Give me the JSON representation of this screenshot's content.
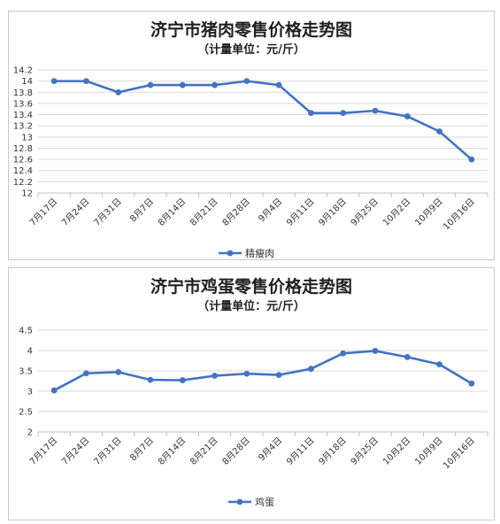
{
  "chart_data": [
    {
      "type": "line",
      "title": "济宁市猪肉零售价格走势图",
      "subtitle": "（计量单位：元/斤）",
      "categories": [
        "7月17日",
        "7月24日",
        "7月31日",
        "8月7日",
        "8月14日",
        "8月21日",
        "8月28日",
        "9月4日",
        "9月11日",
        "9月18日",
        "9月25日",
        "10月2日",
        "10月9日",
        "10月16日"
      ],
      "series": [
        {
          "name": "精瘦肉",
          "color": "#4472c4",
          "values": [
            14.0,
            14.0,
            13.8,
            13.93,
            13.93,
            13.93,
            14.0,
            13.93,
            13.43,
            13.43,
            13.47,
            13.37,
            13.1,
            12.6
          ]
        }
      ],
      "ylim": [
        12,
        14.2
      ],
      "yticks": [
        "12",
        "12.2",
        "12.4",
        "12.6",
        "12.8",
        "13",
        "13.2",
        "13.4",
        "13.6",
        "13.8",
        "14",
        "14.2"
      ],
      "ytick_values": [
        12,
        12.2,
        12.4,
        12.6,
        12.8,
        13,
        13.2,
        13.4,
        13.6,
        13.8,
        14,
        14.2
      ],
      "grid": true,
      "legend": "bottom"
    },
    {
      "type": "line",
      "title": "济宁市鸡蛋零售价格走势图",
      "subtitle": "（计量单位：元/斤）",
      "categories": [
        "7月17日",
        "7月24日",
        "7月31日",
        "8月7日",
        "8月14日",
        "8月21日",
        "8月28日",
        "9月4日",
        "9月11日",
        "9月18日",
        "9月25日",
        "10月2日",
        "10月9日",
        "10月16日"
      ],
      "series": [
        {
          "name": "鸡蛋",
          "color": "#4472c4",
          "values": [
            3.02,
            3.44,
            3.47,
            3.28,
            3.27,
            3.38,
            3.43,
            3.4,
            3.55,
            3.93,
            3.99,
            3.84,
            3.66,
            3.19
          ]
        }
      ],
      "ylim": [
        2,
        4.5
      ],
      "yticks": [
        "2",
        "2.5",
        "3",
        "3.5",
        "4",
        "4.5"
      ],
      "ytick_values": [
        2,
        2.5,
        3,
        3.5,
        4,
        4.5
      ],
      "grid": true,
      "legend": "bottom"
    }
  ]
}
